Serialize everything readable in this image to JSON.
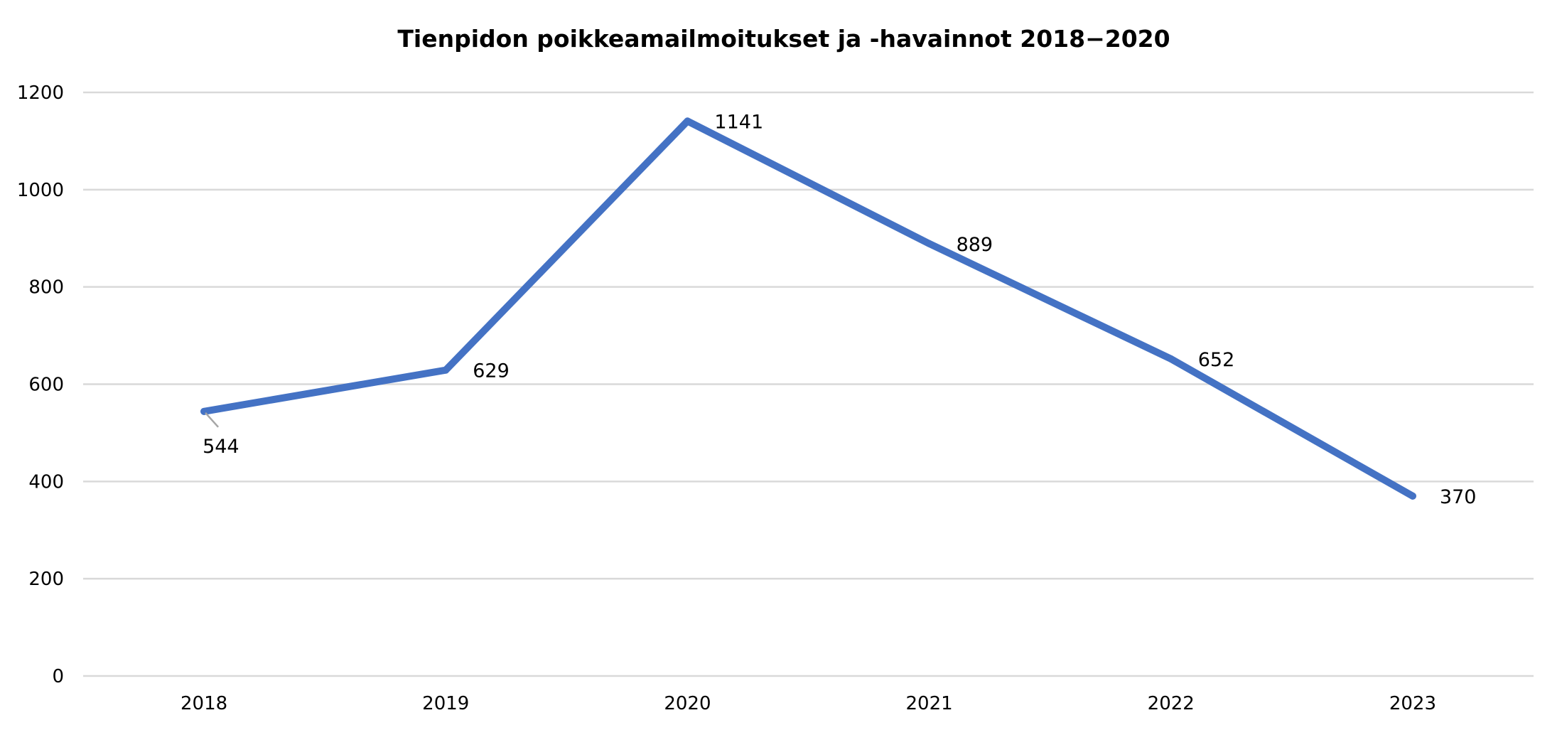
{
  "chart_data": {
    "type": "line",
    "title": "Tienpidon poikkeamailmoitukset ja -havainnot 2018−2020",
    "xlabel": "",
    "ylabel": "",
    "categories": [
      "2018",
      "2019",
      "2020",
      "2021",
      "2022",
      "2023"
    ],
    "series": [
      {
        "values": [
          544,
          629,
          1141,
          889,
          652,
          370
        ],
        "data_labels": [
          "544",
          "629",
          "1141",
          "889",
          "652",
          "370"
        ],
        "color": "#4472c4"
      }
    ],
    "ylim": [
      0,
      1200
    ],
    "yticks": [
      0,
      200,
      400,
      600,
      800,
      1000,
      1200
    ],
    "ytick_labels": [
      "0",
      "200",
      "400",
      "600",
      "800",
      "1000",
      "1200"
    ],
    "grid": true,
    "legend": "none"
  }
}
